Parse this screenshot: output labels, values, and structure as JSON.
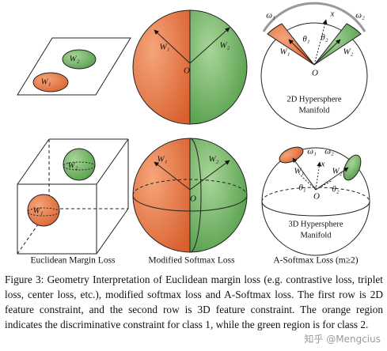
{
  "panels": [
    {
      "labels": [
        "W₂",
        "W₁"
      ]
    },
    {
      "labels": [
        "W₁",
        "W₂",
        "O"
      ]
    },
    {
      "labels": [
        "ω₁",
        "x",
        "ω₂",
        "θ₁",
        "θ₂",
        "W₁",
        "W₂",
        "O"
      ],
      "caption_lines": [
        "2D Hypersphere",
        "Manifold"
      ]
    },
    {
      "labels": [
        "W₂",
        "W₁"
      ]
    },
    {
      "labels": [
        "W₁",
        "W₂",
        "O"
      ]
    },
    {
      "labels": [
        "ω₁",
        "ω₂",
        "x",
        "W₁",
        "W₂",
        "θ₁",
        "θ₂",
        "O"
      ],
      "caption_lines": [
        "3D Hypersphere",
        "Manifold"
      ]
    }
  ],
  "column_labels": [
    "Euclidean Margin Loss",
    "Modified Softmax Loss",
    "A-Softmax Loss (m≥2)"
  ],
  "caption": "Figure 3: Geometry Interpretation of Euclidean margin loss (e.g. contrastive loss, triplet loss, center loss, etc.), modified softmax loss and A-Softmax loss. The first row is 2D feature constraint, and the second row is 3D feature constraint. The orange region indicates the discriminative constraint for class 1, while the green region is for class 2.",
  "watermark": "知乎 @Mengcius"
}
